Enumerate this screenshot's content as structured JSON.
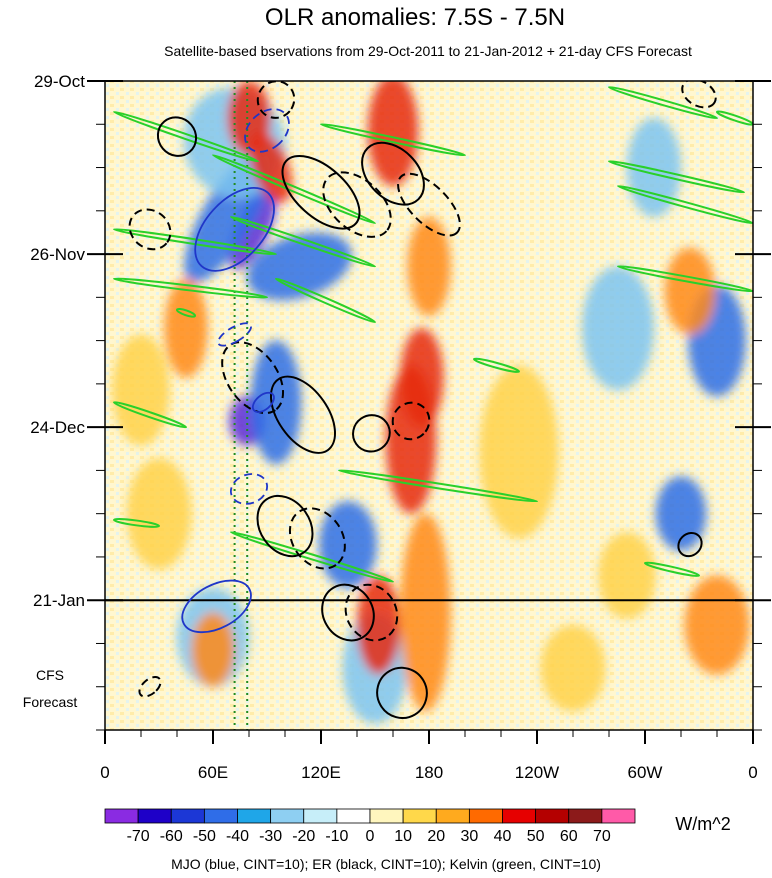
{
  "chart_data": {
    "type": "heatmap",
    "title": "OLR anomalies: 7.5S - 7.5N",
    "subtitle": "Satellite-based bservations from 29-Oct-2011 to 21-Jan-2012 + 21-day CFS Forecast",
    "x_axis": {
      "range_deg_east": [
        0,
        360
      ],
      "ticks": [
        {
          "lon": 0,
          "label": "0"
        },
        {
          "lon": 60,
          "label": "60E"
        },
        {
          "lon": 120,
          "label": "120E"
        },
        {
          "lon": 180,
          "label": "180"
        },
        {
          "lon": 240,
          "label": "120W"
        },
        {
          "lon": 300,
          "label": "60W"
        },
        {
          "lon": 360,
          "label": "0"
        }
      ]
    },
    "y_axis": {
      "range_days_since_start": [
        0,
        105
      ],
      "ticks": [
        {
          "day": 0,
          "label": "29-Oct"
        },
        {
          "day": 28,
          "label": "26-Nov"
        },
        {
          "day": 56,
          "label": "24-Dec"
        },
        {
          "day": 84,
          "label": "21-Jan"
        }
      ],
      "forecast_start_day": 84,
      "forecast_label_line1": "CFS",
      "forecast_label_line2": "Forecast"
    },
    "reference_longitudes": [
      72,
      79
    ],
    "colorbar": {
      "unit": "W/m^2",
      "levels": [
        "-70",
        "-60",
        "-50",
        "-40",
        "-30",
        "-20",
        "-10",
        "0",
        "10",
        "20",
        "30",
        "40",
        "50",
        "60",
        "70"
      ],
      "colors": [
        "#8a2be2",
        "#1e00c8",
        "#1c37d6",
        "#2f6de8",
        "#1fa6e8",
        "#8ecff2",
        "#c7eef9",
        "#ffffff",
        "#fff6be",
        "#ffd84a",
        "#ffaa1e",
        "#ff6a00",
        "#e60000",
        "#b40000",
        "#8c1a1a",
        "#ff5aa8"
      ]
    },
    "blob_colors": {
      "strong_neg": "#5a2bd8",
      "mid_neg": "#2e6fe6",
      "weak_neg": "#7ec4f0",
      "pale_neg": "#c5eaf8",
      "strong_pos": "#e62a10",
      "mid_pos": "#ff8a1a",
      "weak_pos": "#ffd24a",
      "pale_pos": "#fff3b8",
      "contour_mjo": "#1f36c8",
      "contour_er": "#000000",
      "contour_kelvin": "#2ad02a"
    },
    "anomaly_features": [
      {
        "lon": 82,
        "day": 24,
        "rx": 9,
        "ry": 7,
        "rot": 25,
        "value": -70
      },
      {
        "lon": 79,
        "day": 55,
        "rx": 10,
        "ry": 4,
        "rot": 0,
        "value": -70
      },
      {
        "lon": 68,
        "day": 22,
        "rx": 14,
        "ry": 12,
        "rot": 30,
        "value": -50
      },
      {
        "lon": 108,
        "day": 30,
        "rx": 30,
        "ry": 5,
        "rot": -18,
        "value": -40
      },
      {
        "lon": 95,
        "day": 52,
        "rx": 14,
        "ry": 10,
        "rot": 0,
        "value": -40
      },
      {
        "lon": 72,
        "day": 10,
        "rx": 28,
        "ry": 9,
        "rot": -18,
        "value": -30
      },
      {
        "lon": 135,
        "day": 75,
        "rx": 16,
        "ry": 7,
        "rot": 0,
        "value": -40
      },
      {
        "lon": 340,
        "day": 42,
        "rx": 16,
        "ry": 9,
        "rot": 0,
        "value": -40
      },
      {
        "lon": 305,
        "day": 14,
        "rx": 15,
        "ry": 8,
        "rot": 0,
        "value": -30
      },
      {
        "lon": 320,
        "day": 70,
        "rx": 14,
        "ry": 6,
        "rot": 0,
        "value": -40
      },
      {
        "lon": 285,
        "day": 40,
        "rx": 20,
        "ry": 10,
        "rot": 0,
        "value": -20
      },
      {
        "lon": 150,
        "day": 95,
        "rx": 18,
        "ry": 9,
        "rot": 0,
        "value": -20
      },
      {
        "lon": 60,
        "day": 90,
        "rx": 20,
        "ry": 8,
        "rot": 0,
        "value": -20
      },
      {
        "lon": 170,
        "day": 58,
        "rx": 14,
        "ry": 12,
        "rot": 0,
        "value": 50
      },
      {
        "lon": 176,
        "day": 48,
        "rx": 12,
        "ry": 8,
        "rot": 0,
        "value": 40
      },
      {
        "lon": 180,
        "day": 30,
        "rx": 12,
        "ry": 8,
        "rot": 0,
        "value": 30
      },
      {
        "lon": 160,
        "day": 8,
        "rx": 14,
        "ry": 9,
        "rot": 0,
        "value": 40
      },
      {
        "lon": 152,
        "day": 88,
        "rx": 12,
        "ry": 8,
        "rot": 0,
        "value": 40
      },
      {
        "lon": 178,
        "day": 86,
        "rx": 14,
        "ry": 16,
        "rot": 0,
        "value": 30
      },
      {
        "lon": 80,
        "day": 6,
        "rx": 12,
        "ry": 6,
        "rot": 0,
        "value": 40
      },
      {
        "lon": 92,
        "day": 14,
        "rx": 10,
        "ry": 6,
        "rot": -20,
        "value": 40
      },
      {
        "lon": 45,
        "day": 40,
        "rx": 12,
        "ry": 8,
        "rot": 0,
        "value": 30
      },
      {
        "lon": 60,
        "day": 92,
        "rx": 12,
        "ry": 6,
        "rot": 0,
        "value": 30
      },
      {
        "lon": 340,
        "day": 88,
        "rx": 18,
        "ry": 8,
        "rot": 0,
        "value": 30
      },
      {
        "lon": 325,
        "day": 34,
        "rx": 14,
        "ry": 7,
        "rot": 0,
        "value": 30
      },
      {
        "lon": 290,
        "day": 80,
        "rx": 16,
        "ry": 7,
        "rot": 0,
        "value": 20
      },
      {
        "lon": 230,
        "day": 60,
        "rx": 22,
        "ry": 14,
        "rot": 0,
        "value": 20
      },
      {
        "lon": 20,
        "day": 50,
        "rx": 16,
        "ry": 9,
        "rot": 0,
        "value": 20
      },
      {
        "lon": 30,
        "day": 70,
        "rx": 18,
        "ry": 9,
        "rot": 0,
        "value": 20
      },
      {
        "lon": 260,
        "day": 95,
        "rx": 18,
        "ry": 7,
        "rot": 0,
        "value": 20
      }
    ],
    "contours": {
      "mjo": [
        {
          "lon": 72,
          "day": 24,
          "rx": 16,
          "ry": 8,
          "rot": 42,
          "dashed": false
        },
        {
          "lon": 62,
          "day": 85,
          "rx": 12,
          "ry": 6,
          "rot": 62,
          "dashed": false
        },
        {
          "lon": 90,
          "day": 8,
          "rx": 10,
          "ry": 4,
          "rot": 48,
          "dashed": true
        },
        {
          "lon": 72,
          "day": 41,
          "rx": 4,
          "ry": 3,
          "rot": 60,
          "dashed": true
        },
        {
          "lon": 80,
          "day": 66,
          "rx": 8,
          "ry": 3,
          "rot": 70,
          "dashed": true
        },
        {
          "lon": 88,
          "day": 52,
          "rx": 4,
          "ry": 2,
          "rot": 50,
          "dashed": false
        }
      ],
      "er": [
        {
          "lon": 40,
          "day": 9,
          "rx": 11,
          "ry": 3,
          "rot": 50,
          "dashed": false
        },
        {
          "lon": 25,
          "day": 24,
          "rx": 12,
          "ry": 3,
          "rot": 40,
          "dashed": true
        },
        {
          "lon": 82,
          "day": 48,
          "rx": 22,
          "ry": 4,
          "rot": 55,
          "dashed": true
        },
        {
          "lon": 110,
          "day": 54,
          "rx": 24,
          "ry": 4,
          "rot": 55,
          "dashed": false
        },
        {
          "lon": 120,
          "day": 18,
          "rx": 26,
          "ry": 4,
          "rot": 42,
          "dashed": false
        },
        {
          "lon": 140,
          "day": 20,
          "rx": 22,
          "ry": 4,
          "rot": 42,
          "dashed": true
        },
        {
          "lon": 160,
          "day": 15,
          "rx": 20,
          "ry": 4,
          "rot": 45,
          "dashed": false
        },
        {
          "lon": 180,
          "day": 20,
          "rx": 22,
          "ry": 3,
          "rot": 45,
          "dashed": true
        },
        {
          "lon": 100,
          "day": 72,
          "rx": 18,
          "ry": 4,
          "rot": 55,
          "dashed": false
        },
        {
          "lon": 118,
          "day": 74,
          "rx": 18,
          "ry": 4,
          "rot": 55,
          "dashed": true
        },
        {
          "lon": 135,
          "day": 86,
          "rx": 16,
          "ry": 4,
          "rot": 60,
          "dashed": false
        },
        {
          "lon": 148,
          "day": 86,
          "rx": 16,
          "ry": 4,
          "rot": 60,
          "dashed": true
        },
        {
          "lon": 165,
          "day": 99,
          "rx": 14,
          "ry": 4,
          "rot": 60,
          "dashed": false
        },
        {
          "lon": 170,
          "day": 55,
          "rx": 10,
          "ry": 3,
          "rot": 45,
          "dashed": true
        },
        {
          "lon": 148,
          "day": 57,
          "rx": 10,
          "ry": 3,
          "rot": 55,
          "dashed": false
        },
        {
          "lon": 325,
          "day": 75,
          "rx": 6,
          "ry": 2,
          "rot": 45,
          "dashed": false
        },
        {
          "lon": 95,
          "day": 3,
          "rx": 10,
          "ry": 3,
          "rot": 40,
          "dashed": true
        },
        {
          "lon": 330,
          "day": 2,
          "rx": 10,
          "ry": 2,
          "rot": 30,
          "dashed": true
        },
        {
          "lon": 25,
          "day": 98,
          "rx": 4,
          "ry": 2,
          "rot": 50,
          "dashed": true
        }
      ],
      "kelvin": [
        {
          "lon1": 5,
          "day1": 5,
          "lon2": 85,
          "day2": 13
        },
        {
          "lon1": 60,
          "day1": 12,
          "lon2": 150,
          "day2": 23
        },
        {
          "lon1": 120,
          "day1": 7,
          "lon2": 200,
          "day2": 12
        },
        {
          "lon1": 5,
          "day1": 24,
          "lon2": 95,
          "day2": 28
        },
        {
          "lon1": 70,
          "day1": 22,
          "lon2": 150,
          "day2": 30
        },
        {
          "lon1": 5,
          "day1": 32,
          "lon2": 90,
          "day2": 35
        },
        {
          "lon1": 95,
          "day1": 32,
          "lon2": 150,
          "day2": 39
        },
        {
          "lon1": 5,
          "day1": 52,
          "lon2": 45,
          "day2": 56
        },
        {
          "lon1": 5,
          "day1": 71,
          "lon2": 30,
          "day2": 72
        },
        {
          "lon1": 70,
          "day1": 73,
          "lon2": 160,
          "day2": 81
        },
        {
          "lon1": 130,
          "day1": 63,
          "lon2": 240,
          "day2": 68
        },
        {
          "lon1": 280,
          "day1": 1,
          "lon2": 340,
          "day2": 6
        },
        {
          "lon1": 280,
          "day1": 13,
          "lon2": 355,
          "day2": 18
        },
        {
          "lon1": 285,
          "day1": 17,
          "lon2": 360,
          "day2": 23
        },
        {
          "lon1": 285,
          "day1": 30,
          "lon2": 360,
          "day2": 34
        },
        {
          "lon1": 300,
          "day1": 78,
          "lon2": 330,
          "day2": 80
        },
        {
          "lon1": 205,
          "day1": 45,
          "lon2": 230,
          "day2": 47
        },
        {
          "lon1": 340,
          "day1": 5,
          "lon2": 360,
          "day2": 7
        },
        {
          "lon1": 40,
          "day1": 37,
          "lon2": 50,
          "day2": 38
        }
      ]
    },
    "footnote": "MJO (blue, CINT=10); ER (black, CINT=10); Kelvin (green, CINT=10)"
  }
}
